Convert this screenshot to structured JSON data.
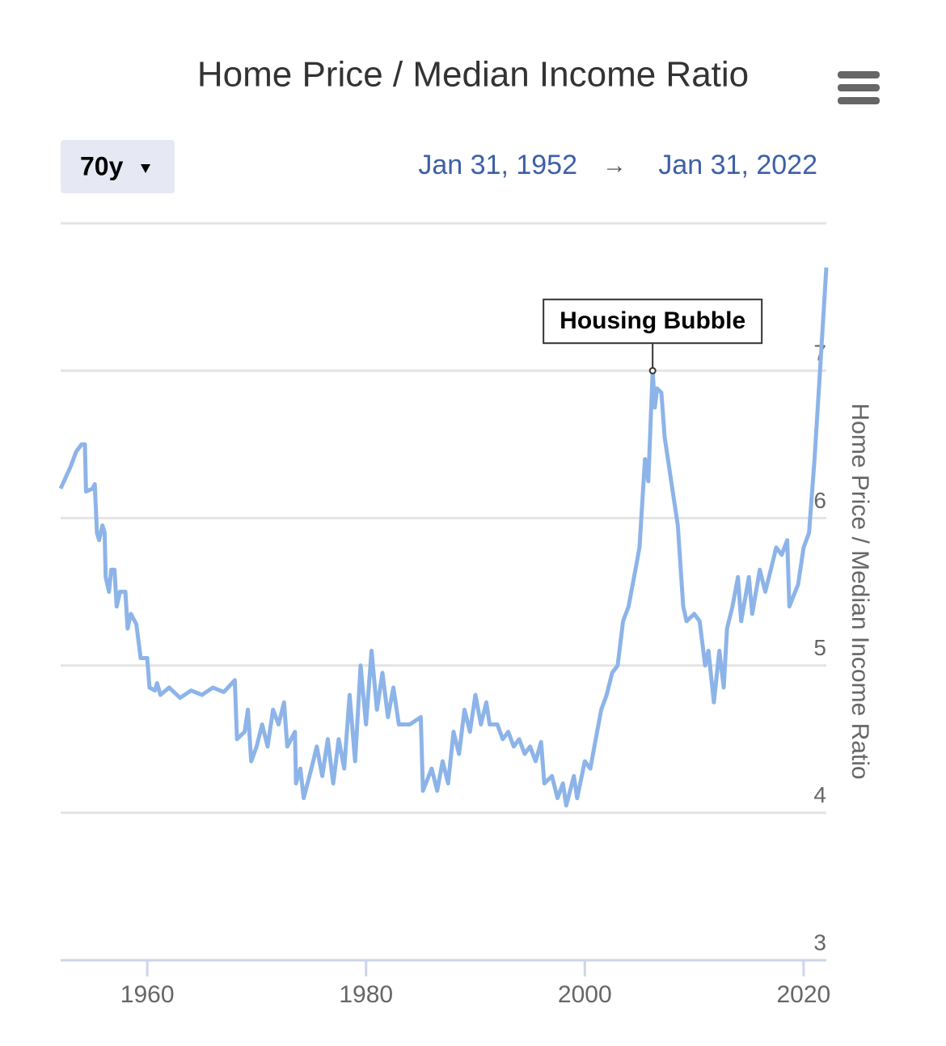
{
  "chart_data": {
    "type": "line",
    "title": "Home Price / Median Income Ratio",
    "range_button": "70y",
    "range_start": "Jan 31, 1952",
    "range_separator": "→",
    "range_end": "Jan 31, 2022",
    "y_axis_label": "Home Price / Median Income Ratio",
    "color": "#8db4e8",
    "grid": true,
    "xlim": [
      1952.08,
      2022.08
    ],
    "xticks": [
      1960,
      1980,
      2000,
      2020
    ],
    "ylim": [
      3,
      8
    ],
    "yticks": [
      3,
      4,
      5,
      6,
      7
    ],
    "x": [
      1952.08,
      1953,
      1953.5,
      1954,
      1954.3,
      1954.4,
      1955,
      1955.2,
      1955.4,
      1955.6,
      1955.9,
      1956.1,
      1956.2,
      1956.5,
      1956.7,
      1957,
      1957.2,
      1957.5,
      1958,
      1958.2,
      1958.5,
      1959,
      1959.4,
      1960,
      1960.2,
      1960.7,
      1960.9,
      1961.2,
      1962,
      1963,
      1964,
      1965,
      1966,
      1967,
      1968,
      1968.2,
      1968.9,
      1969.2,
      1969.5,
      1970,
      1970.5,
      1971,
      1971.5,
      1972,
      1972.5,
      1972.8,
      1973.5,
      1973.6,
      1974,
      1974.3,
      1975,
      1975.5,
      1976,
      1976.5,
      1977,
      1977.5,
      1978,
      1978.5,
      1979,
      1979.5,
      1980,
      1980.5,
      1981,
      1981.5,
      1982,
      1982.5,
      1983,
      1984,
      1985,
      1985.2,
      1986,
      1986.5,
      1987,
      1987.5,
      1988,
      1988.5,
      1989,
      1989.5,
      1990,
      1990.5,
      1991,
      1991.3,
      1992,
      1992.5,
      1993,
      1993.5,
      1994,
      1994.5,
      1995,
      1995.5,
      1996,
      1996.3,
      1997,
      1997.5,
      1998,
      1998.3,
      1999,
      1999.3,
      2000,
      2000.5,
      2001,
      2001.5,
      2002,
      2002.5,
      2003,
      2003.5,
      2004,
      2004.5,
      2005,
      2005.5,
      2005.8,
      2006.2,
      2006.4,
      2006.6,
      2007,
      2007.3,
      2008,
      2008.5,
      2009,
      2009.3,
      2010,
      2010.5,
      2011,
      2011.3,
      2011.8,
      2012.3,
      2012.7,
      2013,
      2013.5,
      2014,
      2014.3,
      2015,
      2015.3,
      2016,
      2016.5,
      2017,
      2017.5,
      2018,
      2018.5,
      2018.7,
      2019.5,
      2020,
      2020.5,
      2021,
      2021.5,
      2022.08
    ],
    "values": [
      6.2,
      6.35,
      6.45,
      6.5,
      6.5,
      6.18,
      6.2,
      6.23,
      5.9,
      5.85,
      5.95,
      5.9,
      5.6,
      5.5,
      5.65,
      5.65,
      5.4,
      5.5,
      5.5,
      5.25,
      5.35,
      5.28,
      5.05,
      5.05,
      4.85,
      4.83,
      4.88,
      4.8,
      4.85,
      4.78,
      4.83,
      4.8,
      4.85,
      4.82,
      4.9,
      4.5,
      4.55,
      4.7,
      4.35,
      4.45,
      4.6,
      4.45,
      4.7,
      4.6,
      4.75,
      4.45,
      4.55,
      4.2,
      4.3,
      4.1,
      4.3,
      4.45,
      4.25,
      4.5,
      4.2,
      4.5,
      4.3,
      4.8,
      4.35,
      5.0,
      4.6,
      5.1,
      4.7,
      4.95,
      4.65,
      4.85,
      4.6,
      4.6,
      4.65,
      4.15,
      4.3,
      4.15,
      4.35,
      4.2,
      4.55,
      4.4,
      4.7,
      4.55,
      4.8,
      4.6,
      4.75,
      4.6,
      4.6,
      4.5,
      4.55,
      4.45,
      4.5,
      4.4,
      4.45,
      4.35,
      4.48,
      4.2,
      4.25,
      4.1,
      4.2,
      4.05,
      4.25,
      4.1,
      4.35,
      4.3,
      4.5,
      4.7,
      4.8,
      4.95,
      5.0,
      5.3,
      5.4,
      5.6,
      5.8,
      6.4,
      6.25,
      7.0,
      6.75,
      6.88,
      6.85,
      6.55,
      6.2,
      5.95,
      5.4,
      5.3,
      5.35,
      5.3,
      5.0,
      5.1,
      4.75,
      5.1,
      4.85,
      5.25,
      5.4,
      5.6,
      5.3,
      5.6,
      5.35,
      5.65,
      5.5,
      5.65,
      5.8,
      5.75,
      5.85,
      5.4,
      5.55,
      5.8,
      5.9,
      6.4,
      7.0,
      7.7
    ],
    "annotations": [
      {
        "text": "Housing Bubble",
        "x": 2006.2,
        "y": 7.0
      }
    ]
  }
}
